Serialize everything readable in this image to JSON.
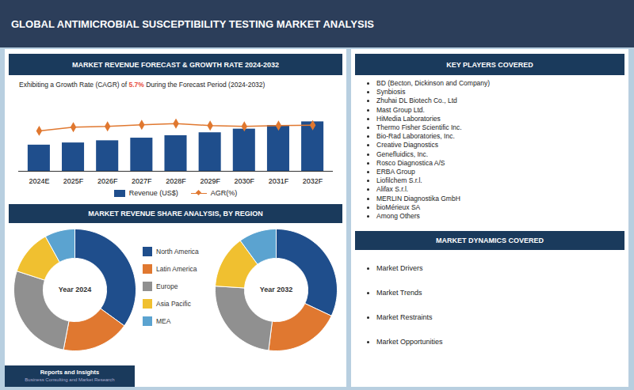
{
  "title": "GLOBAL ANTIMICROBIAL SUSCEPTIBILITY TESTING MARKET ANALYSIS",
  "chart_data": [
    {
      "type": "bar",
      "title": "MARKET REVENUE FORECAST & GROWTH RATE 2024-2032",
      "subtitle": "Exhibiting a Growth Rate (CAGR) of 5.7% During the Forecast Period (2024-2032)",
      "categories": [
        "2024E",
        "2025F",
        "2026F",
        "2027F",
        "2028F",
        "2029F",
        "2030F",
        "2031F",
        "2032F"
      ],
      "series": [
        {
          "name": "Revenue (US$)",
          "type": "bar",
          "color": "#1f4e8c",
          "values": [
            1.8,
            1.95,
            2.1,
            2.28,
            2.45,
            2.65,
            2.9,
            3.15,
            3.4
          ]
        },
        {
          "name": "AGR(%)",
          "type": "line",
          "color": "#e07830",
          "marker": "diamond",
          "axis": "y2",
          "values": [
            5.0,
            5.45,
            5.55,
            5.75,
            5.9,
            5.65,
            5.55,
            5.65,
            5.7
          ]
        }
      ],
      "ylim": [
        0,
        5
      ],
      "y2lim": [
        0,
        9
      ],
      "tick_labels": "x",
      "grid": false,
      "legend": "bottom"
    },
    {
      "type": "pie",
      "title": "MARKET REVENUE SHARE ANALYSIS, BY REGION",
      "subtitle": "Year 2024",
      "categories": [
        "North America",
        "Latin America",
        "Europe",
        "Asia Pacific",
        "MEA"
      ],
      "values": [
        35,
        18,
        27,
        12,
        8
      ],
      "colors": [
        "#1f4e8c",
        "#e07830",
        "#909090",
        "#f0c030",
        "#5ba3d0"
      ],
      "legend": "right"
    },
    {
      "type": "pie",
      "subtitle": "Year 2032",
      "categories": [
        "North America",
        "Latin America",
        "Europe",
        "Asia Pacific",
        "MEA"
      ],
      "values": [
        32,
        20,
        24,
        14,
        10
      ],
      "colors": [
        "#1f4e8c",
        "#e07830",
        "#909090",
        "#f0c030",
        "#5ba3d0"
      ]
    }
  ],
  "lists": [
    {
      "title": "KEY PLAYERS COVERED",
      "items": [
        "BD (Becton, Dickinson and Company)",
        "Synbiosis",
        "Zhuhai DL Biotech Co., Ltd",
        "Mast Group Ltd.",
        "HiMedia Laboratories",
        "Thermo Fisher Scientific Inc.",
        "Bio-Rad Laboratories, Inc.",
        "Creative Diagnostics",
        "Genefluidics, Inc.",
        "Rosco Diagnostica A/S",
        "ERBA Group",
        "Liofilchem S.r.l.",
        "Alifax S.r.l.",
        "MERLIN Diagnostika GmbH",
        "bioMérieux SA",
        "Among Others"
      ]
    },
    {
      "title": "MARKET DYNAMICS COVERED",
      "items": [
        "Market Drivers",
        "Market Trends",
        "Market Restraints",
        "Market Opportunities"
      ]
    }
  ],
  "footer": [
    "Reports and Insights",
    "Business Consulting and Market Research"
  ]
}
